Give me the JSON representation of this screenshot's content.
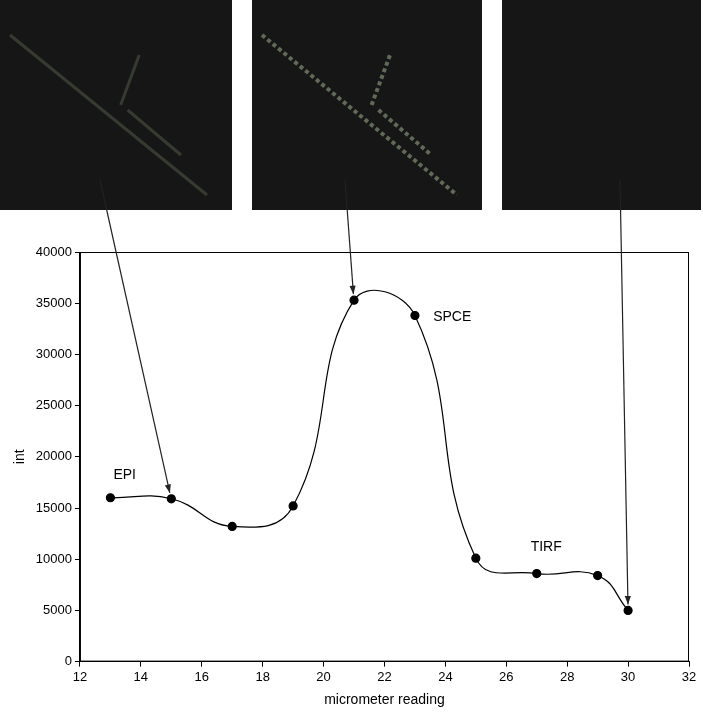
{
  "chart_data": {
    "type": "line",
    "x": [
      13,
      15,
      17,
      19,
      21,
      23,
      25,
      27,
      29,
      30
    ],
    "values": [
      16000,
      15900,
      13200,
      15200,
      35300,
      33800,
      10100,
      8600,
      8400,
      5000
    ],
    "color": "#000000",
    "marker": "circle",
    "x_label": "micrometer reading",
    "y_label": "int",
    "xlim": [
      12,
      32
    ],
    "xticks": [
      12,
      14,
      16,
      18,
      20,
      22,
      24,
      26,
      28,
      30,
      32
    ],
    "ylim": [
      0,
      40000
    ],
    "yticks": [
      0,
      5000,
      10000,
      15000,
      20000,
      25000,
      30000,
      35000,
      40000
    ],
    "grid": false,
    "annotations": [
      {
        "text": "EPI",
        "x": 13.1,
        "y": 18200
      },
      {
        "text": "SPCE",
        "x": 23.6,
        "y": 33600
      },
      {
        "text": "TIRF",
        "x": 26.8,
        "y": 11200
      }
    ]
  }
}
